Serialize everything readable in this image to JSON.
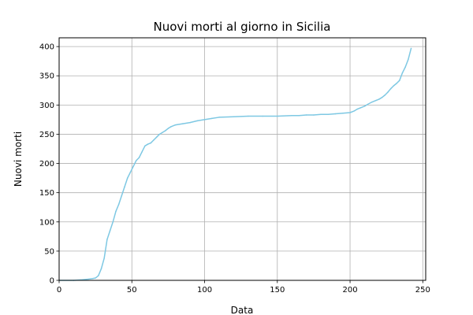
{
  "chart_data": {
    "type": "line",
    "title": "Nuovi morti al giorno in Sicilia",
    "xlabel": "Data",
    "ylabel": "Nuovi morti",
    "xlim": [
      0,
      252
    ],
    "ylim": [
      0,
      415
    ],
    "xticks": [
      0,
      50,
      100,
      150,
      200,
      250
    ],
    "yticks": [
      0,
      50,
      100,
      150,
      200,
      250,
      300,
      350,
      400
    ],
    "grid": true,
    "line_color": "#7ec8e3",
    "series": [
      {
        "x": [
          0,
          10,
          16,
          20,
          23,
          25,
          27,
          29,
          31,
          33,
          35,
          37,
          39,
          41,
          43,
          45,
          47,
          49,
          51,
          53,
          55,
          57,
          59,
          61,
          63,
          65,
          67,
          69,
          71,
          73,
          75,
          77,
          80,
          85,
          90,
          95,
          100,
          105,
          110,
          120,
          130,
          140,
          150,
          160,
          165,
          170,
          175,
          180,
          185,
          190,
          195,
          200,
          203,
          205,
          207,
          210,
          212,
          215,
          218,
          220,
          222,
          224,
          226,
          228,
          230,
          232,
          234,
          236,
          238,
          240,
          242
        ],
        "y": [
          0,
          0,
          1,
          2,
          3,
          4,
          8,
          20,
          38,
          70,
          85,
          100,
          118,
          130,
          145,
          160,
          175,
          185,
          195,
          205,
          210,
          220,
          230,
          233,
          235,
          240,
          245,
          250,
          253,
          256,
          260,
          263,
          266,
          268,
          270,
          273,
          275,
          277,
          279,
          280,
          281,
          281,
          281,
          282,
          282,
          283,
          283,
          284,
          284,
          285,
          286,
          287,
          290,
          293,
          295,
          298,
          301,
          305,
          308,
          310,
          313,
          317,
          322,
          328,
          333,
          337,
          342,
          355,
          365,
          378,
          397
        ]
      }
    ]
  }
}
